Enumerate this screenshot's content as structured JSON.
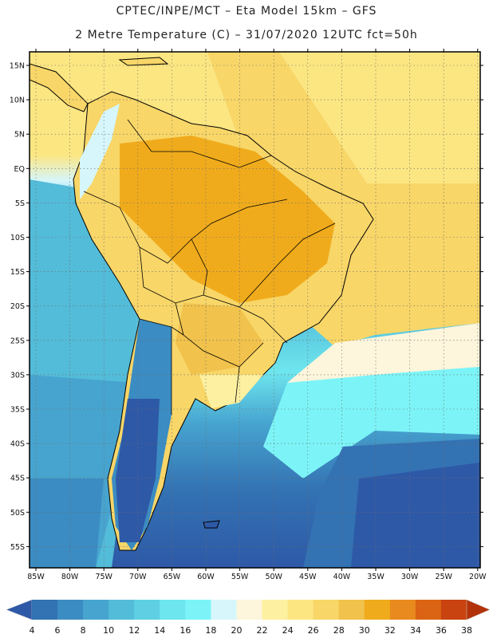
{
  "header": {
    "line1": "CPTEC/INPE/MCT –  Eta Model 15km – GFS",
    "line2": "2 Metre Temperature (C) – 31/07/2020 12UTC fct=50h"
  },
  "map": {
    "lat_labels": [
      "15N",
      "10N",
      "5N",
      "EQ",
      "5S",
      "10S",
      "15S",
      "20S",
      "25S",
      "30S",
      "35S",
      "40S",
      "45S",
      "50S",
      "55S"
    ],
    "lon_labels": [
      "85W",
      "80W",
      "75W",
      "70W",
      "65W",
      "60W",
      "55W",
      "50W",
      "45W",
      "40W",
      "35W",
      "30W",
      "25W",
      "20W"
    ]
  },
  "legend": {
    "values": [
      "4",
      "6",
      "8",
      "10",
      "12",
      "14",
      "16",
      "18",
      "20",
      "22",
      "24",
      "26",
      "28",
      "30",
      "32",
      "34",
      "36",
      "38"
    ],
    "colors": [
      "#2e59a7",
      "#3372b3",
      "#3b8cc2",
      "#47a4cf",
      "#53bcd9",
      "#5fd0e4",
      "#6ee6ee",
      "#7cf4f7",
      "#d6f6fb",
      "#fdf5dc",
      "#fdf0a0",
      "#fce682",
      "#f8d668",
      "#f1c24c",
      "#f0ab1c",
      "#e88a1e",
      "#db6314",
      "#c94310",
      "#b2330a"
    ]
  }
}
